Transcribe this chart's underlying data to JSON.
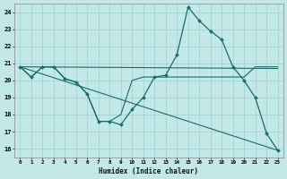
{
  "xlabel": "Humidex (Indice chaleur)",
  "bg_color": "#c2e8e8",
  "grid_color": "#9fcfcf",
  "line_color": "#1a6b6b",
  "xlim": [
    -0.5,
    23.5
  ],
  "ylim": [
    15.5,
    24.5
  ],
  "yticks": [
    16,
    17,
    18,
    19,
    20,
    21,
    22,
    23,
    24
  ],
  "xticks": [
    0,
    1,
    2,
    3,
    4,
    5,
    6,
    7,
    8,
    9,
    10,
    11,
    12,
    13,
    14,
    15,
    16,
    17,
    18,
    19,
    20,
    21,
    22,
    23
  ],
  "series_main": {
    "x": [
      0,
      1,
      2,
      3,
      4,
      5,
      6,
      7,
      8,
      9,
      10,
      11,
      12,
      13,
      14,
      15,
      16,
      17,
      18,
      19,
      20,
      21,
      22,
      23
    ],
    "y": [
      20.8,
      20.2,
      20.8,
      20.8,
      20.1,
      19.9,
      19.2,
      17.6,
      17.6,
      17.4,
      18.3,
      19.0,
      20.2,
      20.3,
      21.5,
      24.3,
      23.5,
      22.9,
      22.4,
      20.8,
      20.0,
      19.0,
      16.9,
      15.9
    ]
  },
  "series_flat": {
    "x": [
      0,
      23
    ],
    "y": [
      20.8,
      20.7
    ]
  },
  "series_follow_then_flat": {
    "x": [
      0,
      1,
      2,
      3,
      4,
      5,
      6,
      7,
      8,
      9,
      10,
      11,
      12,
      13,
      14,
      15,
      16,
      17,
      18,
      19,
      20,
      21,
      22,
      23
    ],
    "y": [
      20.8,
      20.2,
      20.8,
      20.8,
      20.1,
      19.9,
      19.2,
      17.6,
      17.6,
      18.0,
      20.0,
      20.2,
      20.2,
      20.2,
      20.2,
      20.2,
      20.2,
      20.2,
      20.2,
      20.2,
      20.2,
      20.8,
      20.8,
      20.8
    ]
  },
  "series_diagonal": {
    "x": [
      0,
      23
    ],
    "y": [
      20.8,
      15.9
    ]
  }
}
